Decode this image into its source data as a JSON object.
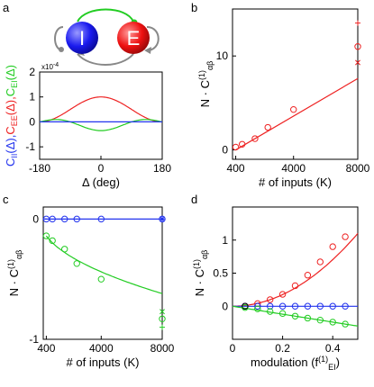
{
  "panels": {
    "a": {
      "letter": "a"
    },
    "b": {
      "letter": "b"
    },
    "c": {
      "letter": "c"
    },
    "d": {
      "letter": "d"
    }
  },
  "network_diagram": {
    "nodes": [
      {
        "label": "I",
        "color": "#1a1aff"
      },
      {
        "label": "E",
        "color": "#ee1111"
      }
    ],
    "connection_colors": {
      "excitatory": "#22cc22",
      "inhibitory": "#888888"
    }
  },
  "colors": {
    "red": "#ee2222",
    "green": "#22cc22",
    "blue": "#2233ee",
    "black": "#000000"
  },
  "chart_data": [
    {
      "panel": "a",
      "type": "line",
      "ylabel_parts": [
        {
          "text": "C",
          "sub": "II",
          "tail": "(Δ),",
          "color": "#2233ee"
        },
        {
          "text": "C",
          "sub": "EE",
          "tail": "(Δ),",
          "color": "#ee2222"
        },
        {
          "text": "C",
          "sub": "EI",
          "tail": "(Δ)",
          "color": "#22cc22"
        }
      ],
      "xlabel": "Δ (deg)",
      "scale_label": "x10",
      "scale_exp": "-4",
      "xlim": [
        -180,
        180
      ],
      "ylim": [
        -1.5,
        2
      ],
      "xticks": [
        -180,
        0,
        180
      ],
      "yticks": [
        -1,
        0,
        1,
        2
      ],
      "series": [
        {
          "color": "#ee2222",
          "amplitude": 1.0,
          "form": "cos_bump"
        },
        {
          "color": "#22cc22",
          "amplitude": 0.35,
          "form": "negative_bump"
        },
        {
          "color": "#2233ee",
          "amplitude": 0.0,
          "form": "flat"
        }
      ]
    },
    {
      "panel": "b",
      "type": "scatter",
      "ylabel": "N · C",
      "ylabel_sup": "(1)",
      "ylabel_sub": "αβ",
      "xlabel": "# of inputs (K)",
      "xlim": [
        200,
        8000
      ],
      "ylim": [
        -1,
        15
      ],
      "xticks": [
        400,
        4000,
        8000
      ],
      "yticks": [
        0,
        10
      ],
      "points": [
        {
          "x": 400,
          "y": 0.3,
          "marker": "o",
          "color": "#ee2222"
        },
        {
          "x": 800,
          "y": 0.6,
          "marker": "o",
          "color": "#ee2222"
        },
        {
          "x": 1600,
          "y": 1.2,
          "marker": "o",
          "color": "#ee2222"
        },
        {
          "x": 2400,
          "y": 2.4,
          "marker": "o",
          "color": "#ee2222"
        },
        {
          "x": 4000,
          "y": 4.3,
          "marker": "o",
          "color": "#ee2222"
        },
        {
          "x": 8000,
          "y": 13.5,
          "marker": "+",
          "color": "#ee2222"
        },
        {
          "x": 8000,
          "y": 11.0,
          "marker": "o",
          "color": "#ee2222"
        },
        {
          "x": 8000,
          "y": 9.3,
          "marker": "x",
          "color": "#ee2222"
        }
      ],
      "fit_line": {
        "x": [
          400,
          8000
        ],
        "y": [
          0.0,
          7.6
        ],
        "color": "#ee2222"
      }
    },
    {
      "panel": "c",
      "type": "scatter",
      "ylabel": "N · C",
      "ylabel_sup": "(1)",
      "ylabel_sub": "αβ",
      "xlabel": "# of inputs (K)",
      "xlim": [
        200,
        8000
      ],
      "ylim": [
        -1,
        0.1
      ],
      "xticks": [
        400,
        4000,
        8000
      ],
      "yticks": [
        -1,
        0
      ],
      "points": [
        {
          "x": 400,
          "y": 0.0,
          "marker": "o",
          "color": "#2233ee"
        },
        {
          "x": 800,
          "y": 0.0,
          "marker": "o",
          "color": "#2233ee"
        },
        {
          "x": 1600,
          "y": 0.0,
          "marker": "o",
          "color": "#2233ee"
        },
        {
          "x": 2400,
          "y": 0.0,
          "marker": "o",
          "color": "#2233ee"
        },
        {
          "x": 4000,
          "y": 0.0,
          "marker": "o",
          "color": "#2233ee"
        },
        {
          "x": 8000,
          "y": 0.0,
          "marker": "o",
          "color": "#2233ee"
        },
        {
          "x": 8000,
          "y": 0.0,
          "marker": "x",
          "color": "#2233ee"
        },
        {
          "x": 8000,
          "y": 0.0,
          "marker": "+",
          "color": "#2233ee"
        },
        {
          "x": 400,
          "y": -0.14,
          "marker": "o",
          "color": "#22cc22"
        },
        {
          "x": 800,
          "y": -0.18,
          "marker": "o",
          "color": "#22cc22"
        },
        {
          "x": 1600,
          "y": -0.25,
          "marker": "o",
          "color": "#22cc22"
        },
        {
          "x": 2400,
          "y": -0.37,
          "marker": "o",
          "color": "#22cc22"
        },
        {
          "x": 4000,
          "y": -0.5,
          "marker": "o",
          "color": "#22cc22"
        },
        {
          "x": 8000,
          "y": -0.77,
          "marker": "x",
          "color": "#22cc22"
        },
        {
          "x": 8000,
          "y": -0.83,
          "marker": "o",
          "color": "#22cc22"
        },
        {
          "x": 8000,
          "y": -0.9,
          "marker": "+",
          "color": "#22cc22"
        }
      ],
      "fit_lines": [
        {
          "color": "#2233ee",
          "form": "zero"
        },
        {
          "color": "#22cc22",
          "form": "sqrt",
          "x": [
            400,
            8000
          ],
          "y": [
            -0.14,
            -0.62
          ]
        }
      ]
    },
    {
      "panel": "d",
      "type": "scatter",
      "ylabel": "N · C",
      "ylabel_sup": "(1)",
      "ylabel_sub": "αβ",
      "xlabel_main": "modulation (f",
      "xlabel_sup": "(1)",
      "xlabel_sub": "EI",
      "xlabel_close": ")",
      "xlim": [
        0,
        0.5
      ],
      "ylim": [
        -0.5,
        1.5
      ],
      "xticks": [
        0,
        0.2,
        0.4
      ],
      "yticks": [
        0,
        0.5,
        1
      ],
      "series": [
        {
          "color": "#ee2222",
          "x": [
            0.05,
            0.1,
            0.15,
            0.2,
            0.25,
            0.3,
            0.35,
            0.4,
            0.45
          ],
          "y": [
            0.0,
            0.04,
            0.1,
            0.18,
            0.31,
            0.47,
            0.67,
            0.9,
            1.05
          ],
          "fit": "quadratic",
          "fit_coef": 4.4
        },
        {
          "color": "#2233ee",
          "x": [
            0.05,
            0.1,
            0.15,
            0.2,
            0.25,
            0.3,
            0.35,
            0.4,
            0.45
          ],
          "y": [
            0.0,
            0.0,
            0.0,
            0.0,
            0.0,
            0.0,
            0.0,
            0.0,
            0.0
          ],
          "fit": "zero",
          "fit_coef": 0
        },
        {
          "color": "#22cc22",
          "x": [
            0.05,
            0.1,
            0.15,
            0.2,
            0.25,
            0.3,
            0.35,
            0.4,
            0.45
          ],
          "y": [
            -0.02,
            -0.04,
            -0.08,
            -0.11,
            -0.15,
            -0.18,
            -0.21,
            -0.24,
            -0.27
          ],
          "fit": "linear",
          "fit_coef": -0.6
        }
      ]
    }
  ]
}
